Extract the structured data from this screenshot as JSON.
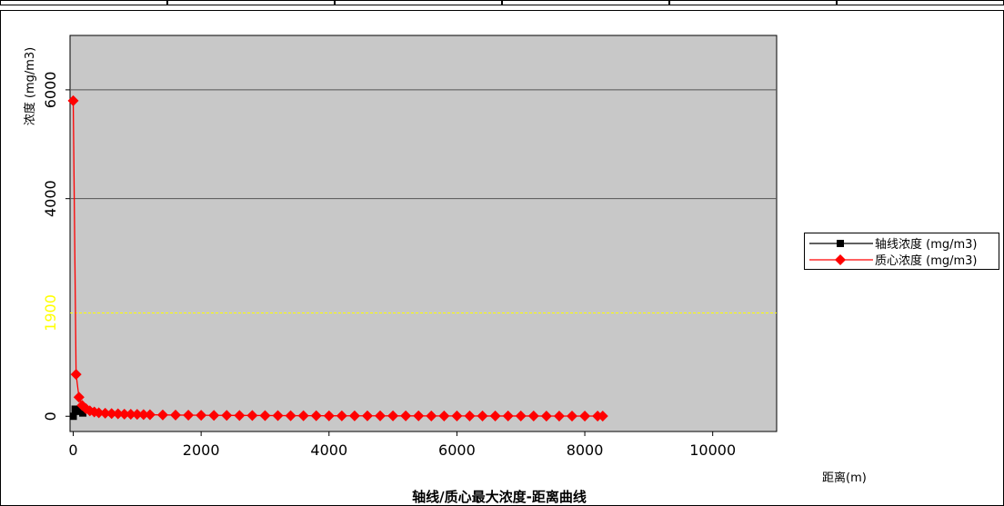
{
  "table_strip": {
    "cells": [
      "",
      "",
      "",
      "",
      "",
      ""
    ]
  },
  "chart_data": {
    "type": "line",
    "title": "轴线/质心最大浓度-距离曲线",
    "xlabel": "距离(m)",
    "ylabel": "浓度 (mg/m3)",
    "xlim": [
      -50,
      11000
    ],
    "ylim": [
      -280,
      7000
    ],
    "xticks": [
      0,
      2000,
      4000,
      6000,
      8000,
      10000
    ],
    "yticks": [
      0,
      4000,
      6000
    ],
    "gridlines_y": [
      6000,
      4000
    ],
    "grid": true,
    "background": "#c8c8c8",
    "threshold": {
      "value": 1900,
      "label": "1900",
      "color": "#ffff00"
    },
    "legend_position": "right",
    "series": [
      {
        "name": "轴线浓度 (mg/m3)",
        "color": "#000000",
        "marker": "square",
        "x": [
          0,
          30,
          60,
          100,
          150
        ],
        "y": [
          0,
          130,
          120,
          90,
          60
        ]
      },
      {
        "name": "质心浓度 (mg/m3)",
        "color": "#ff0000",
        "marker": "diamond",
        "x": [
          0,
          45,
          90,
          140,
          200,
          260,
          330,
          400,
          500,
          600,
          700,
          800,
          900,
          1000,
          1100,
          1200,
          1400,
          1600,
          1800,
          2000,
          2200,
          2400,
          2600,
          2800,
          3000,
          3200,
          3400,
          3600,
          3800,
          4000,
          4200,
          4400,
          4600,
          4800,
          5000,
          5200,
          5400,
          5600,
          5800,
          6000,
          6200,
          6400,
          6600,
          6800,
          7000,
          7200,
          7400,
          7600,
          7800,
          8000,
          8200,
          8280
        ],
        "y": [
          5800,
          770,
          350,
          200,
          140,
          100,
          80,
          65,
          55,
          50,
          45,
          40,
          38,
          35,
          30,
          28,
          25,
          22,
          20,
          18,
          17,
          16,
          15,
          14,
          13,
          12,
          11,
          10,
          10,
          9,
          9,
          8,
          8,
          8,
          7,
          7,
          7,
          6,
          6,
          6,
          6,
          5,
          5,
          5,
          5,
          5,
          4,
          4,
          4,
          4,
          4,
          4
        ]
      }
    ]
  }
}
